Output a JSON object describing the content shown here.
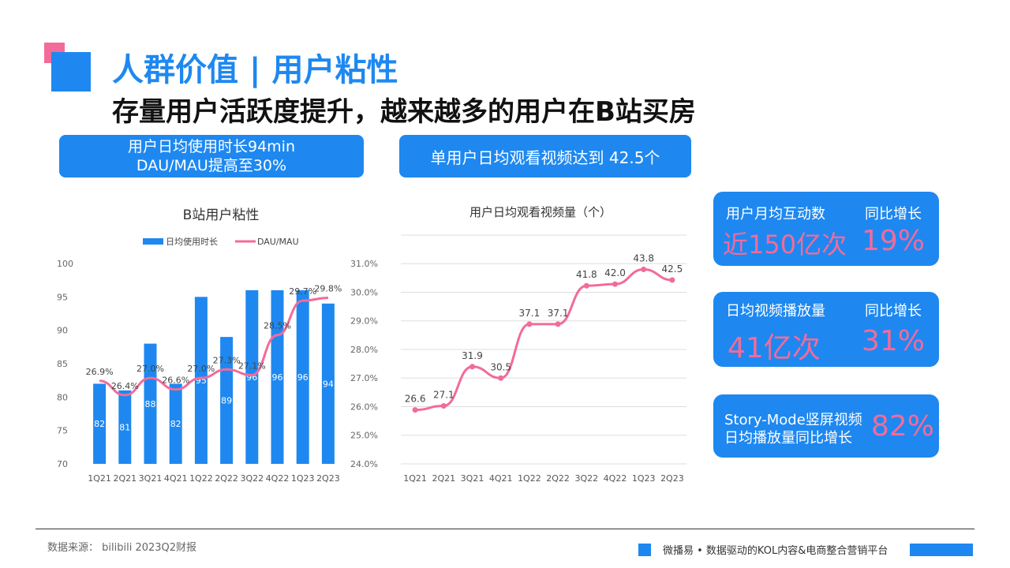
{
  "header": {
    "title": "人群价值 | 用户粘性",
    "subtitle": "存量用户活跃度提升，越来越多的用户在B站买房"
  },
  "pills": {
    "left_line1": "用户日均使用时长94min",
    "left_line2": "DAU/MAU提高至30%",
    "right": "单用户日均观看视频达到 42.5个"
  },
  "stats": [
    {
      "label": "用户月均互动数",
      "value": "近150亿次",
      "growth_label": "同比增长",
      "growth": "19%"
    },
    {
      "label": "日均视频播放量",
      "value": "41亿次",
      "growth_label": "同比增长",
      "growth": "31%"
    },
    {
      "label_line1": "Story-Mode竖屏视频",
      "label_line2": "日均播放量同比增长",
      "growth": "82%"
    }
  ],
  "footer": {
    "source": "数据来源： bilibili 2023Q2财报",
    "tagline": "微播易 • 数据驱动的KOL内容&电商整合营销平台"
  },
  "colors": {
    "primary": "#1e88f0",
    "accent": "#f26b9a"
  },
  "chart_data": [
    {
      "type": "bar",
      "title": "B站用户粘性",
      "categories": [
        "1Q21",
        "2Q21",
        "3Q21",
        "4Q21",
        "1Q22",
        "2Q22",
        "3Q22",
        "4Q22",
        "1Q23",
        "2Q23"
      ],
      "series": [
        {
          "name": "日均使用时长",
          "type": "bar",
          "axis": "left",
          "values": [
            82,
            81,
            88,
            82,
            95,
            89,
            96,
            96,
            96,
            94
          ]
        },
        {
          "name": "DAU/MAU",
          "type": "line",
          "axis": "right",
          "values": [
            26.9,
            26.4,
            27.0,
            26.6,
            27.0,
            27.3,
            27.1,
            28.5,
            29.7,
            29.8
          ]
        }
      ],
      "yleft_ticks": [
        "100",
        "95",
        "90",
        "85",
        "80",
        "75",
        "70"
      ],
      "yleft_lim": [
        70,
        100
      ],
      "yright_ticks": [
        "31.0%",
        "30.0%",
        "29.0%",
        "28.0%",
        "27.0%",
        "26.0%",
        "25.0%",
        "24.0%"
      ],
      "yright_lim": [
        24,
        31
      ],
      "line_labels": [
        "26.9%",
        "26.4%",
        "27.0%",
        "26.6%",
        "27.0%",
        "27.3%",
        "27.1%",
        "28.5%",
        "29.7%",
        "29.8%"
      ],
      "legend_position": "top"
    },
    {
      "type": "line",
      "title": "用户日均观看视频量（个）",
      "categories": [
        "1Q21",
        "2Q21",
        "3Q21",
        "4Q21",
        "1Q22",
        "2Q22",
        "3Q22",
        "4Q22",
        "1Q23",
        "2Q23"
      ],
      "values": [
        26.6,
        27.1,
        31.9,
        30.5,
        37.1,
        37.1,
        41.8,
        42.0,
        43.8,
        42.5
      ],
      "ylim": [
        20,
        48
      ],
      "grid": true
    }
  ]
}
